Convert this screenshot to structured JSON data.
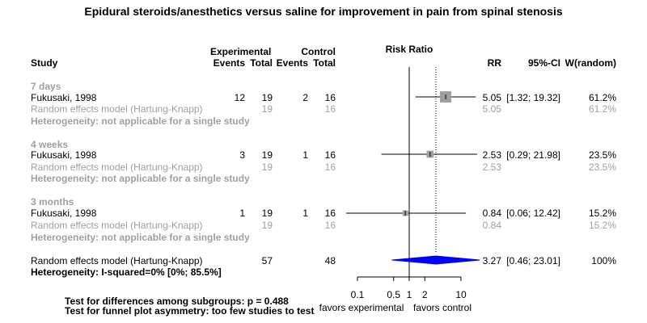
{
  "chart_data": {
    "type": "forest",
    "title": "Epidural steroids/anesthetics versus saline for improvement in pain from spinal stenosis",
    "columns": {
      "study": "Study",
      "experimental": "Experimental",
      "control": "Control",
      "events": "Events",
      "total": "Total",
      "plot": "Risk Ratio",
      "rr": "RR",
      "ci": "95%-CI",
      "weight": "W(random)"
    },
    "x_axis": {
      "scale": "log",
      "ticks": [
        0.1,
        0.5,
        1,
        2,
        10
      ],
      "tick_labels": [
        "0.1",
        "0.5",
        "1",
        "2",
        "10"
      ],
      "left_label": "favors experimental",
      "right_label": "favors control",
      "null_value": 1,
      "overall_line": 3.27
    },
    "subgroups": [
      {
        "label": "7 days",
        "study": {
          "name": "Fukusaki, 1998",
          "exp_events": "12",
          "exp_total": "19",
          "ctrl_events": "2",
          "ctrl_total": "16",
          "rr": 5.05,
          "lower": 1.32,
          "upper": 19.32,
          "rr_text": "5.05",
          "ci_text": "[1.32; 19.32]",
          "weight_text": "61.2%",
          "weight": 61.2
        },
        "model": {
          "label": "Random effects model  (Hartung-Knapp)",
          "exp_total": "19",
          "ctrl_total": "16",
          "rr_text": "5.05",
          "weight_text": "61.2%"
        },
        "heterogeneity": "Heterogeneity: not applicable for a single study"
      },
      {
        "label": "4 weeks",
        "study": {
          "name": "Fukusaki, 1998",
          "exp_events": "3",
          "exp_total": "19",
          "ctrl_events": "1",
          "ctrl_total": "16",
          "rr": 2.53,
          "lower": 0.29,
          "upper": 21.98,
          "rr_text": "2.53",
          "ci_text": "[0.29; 21.98]",
          "weight_text": "23.5%",
          "weight": 23.5
        },
        "model": {
          "label": "Random effects model  (Hartung-Knapp)",
          "exp_total": "19",
          "ctrl_total": "16",
          "rr_text": "2.53",
          "weight_text": "23.5%"
        },
        "heterogeneity": "Heterogeneity: not applicable for a single study"
      },
      {
        "label": "3 months",
        "study": {
          "name": "Fukusaki, 1998",
          "exp_events": "1",
          "exp_total": "19",
          "ctrl_events": "1",
          "ctrl_total": "16",
          "rr": 0.84,
          "lower": 0.06,
          "upper": 12.42,
          "rr_text": "0.84",
          "ci_text": "[0.06; 12.42]",
          "weight_text": "15.2%",
          "weight": 15.2
        },
        "model": {
          "label": "Random effects model  (Hartung-Knapp)",
          "exp_total": "19",
          "ctrl_total": "16",
          "rr_text": "0.84",
          "weight_text": "15.2%"
        },
        "heterogeneity": "Heterogeneity: not applicable for a single study"
      }
    ],
    "overall": {
      "label": "Random effects model  (Hartung-Knapp)",
      "exp_total": "57",
      "ctrl_total": "48",
      "rr": 3.27,
      "lower": 0.46,
      "upper": 23.01,
      "rr_text": "3.27",
      "ci_text": "[0.46; 23.01]",
      "weight_text": "100%",
      "heterogeneity": "Heterogeneity: I-squared=0% [0%; 85.5%]"
    },
    "footnotes": [
      "Test for differences among subgroups: p = 0.488",
      "Test for funnel plot asymmetry: too few studies to test"
    ],
    "colors": {
      "diamond": "#0000ff",
      "square": "#a0a0a0",
      "grey_text": "#a0a0a0",
      "overall_line": "#000000"
    }
  }
}
